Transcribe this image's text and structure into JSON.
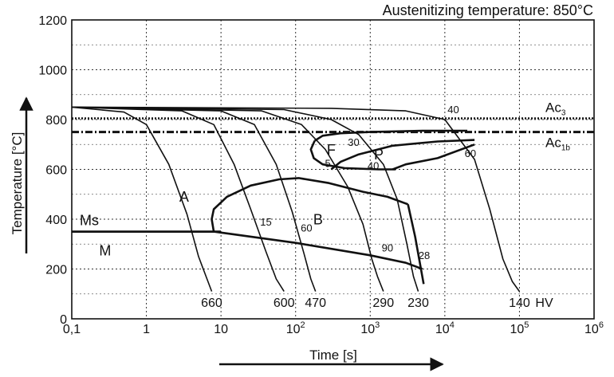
{
  "chart_data": {
    "type": "line",
    "title": "Austenitizing temperature: 850°C",
    "xlabel": "Time [s]",
    "ylabel": "Temperature [°C]",
    "x_scale": "log",
    "xlim": [
      0.1,
      1000000
    ],
    "ylim": [
      0,
      1200
    ],
    "grid": true,
    "x_ticks": [
      {
        "v": 0.1,
        "base": "0,1",
        "exp": ""
      },
      {
        "v": 1,
        "base": "1",
        "exp": ""
      },
      {
        "v": 10,
        "base": "10",
        "exp": ""
      },
      {
        "v": 100,
        "base": "10",
        "exp": "2"
      },
      {
        "v": 1000,
        "base": "10",
        "exp": "3"
      },
      {
        "v": 10000,
        "base": "10",
        "exp": "4"
      },
      {
        "v": 100000,
        "base": "10",
        "exp": "5"
      },
      {
        "v": 1000000,
        "base": "10",
        "exp": "6"
      }
    ],
    "y_ticks": [
      0,
      200,
      400,
      600,
      800,
      1000,
      1200
    ],
    "reference_lines": [
      {
        "base": "Ac",
        "sub": "3",
        "y": 805,
        "style": "dotted"
      },
      {
        "base": "Ac",
        "sub": "1b",
        "y": 750,
        "style": "dashdot"
      }
    ],
    "ms_line": {
      "label": "Ms",
      "points": [
        [
          0.1,
          350
        ],
        [
          10,
          350
        ]
      ]
    },
    "regions": [
      {
        "label": "A",
        "x": 3.2,
        "y": 470
      },
      {
        "label": "B",
        "x": 200,
        "y": 380
      },
      {
        "label": "F",
        "x": 300,
        "y": 660
      },
      {
        "label": "P",
        "x": 1300,
        "y": 640
      },
      {
        "label": "M",
        "x": 0.28,
        "y": 255
      }
    ],
    "cooling_curves": [
      {
        "hardness": "660",
        "points": [
          [
            0.1,
            850
          ],
          [
            0.5,
            830
          ],
          [
            1,
            780
          ],
          [
            2,
            620
          ],
          [
            3.5,
            420
          ],
          [
            5,
            250
          ],
          [
            6.5,
            160
          ],
          [
            7.5,
            110
          ]
        ]
      },
      {
        "hardness": "600",
        "points": [
          [
            0.1,
            850
          ],
          [
            3,
            835
          ],
          [
            8,
            780
          ],
          [
            15,
            620
          ],
          [
            25,
            440
          ],
          [
            40,
            270
          ],
          [
            55,
            160
          ],
          [
            70,
            110
          ]
        ]
      },
      {
        "hardness": "470",
        "points": [
          [
            0.1,
            850
          ],
          [
            10,
            835
          ],
          [
            28,
            780
          ],
          [
            55,
            620
          ],
          [
            90,
            430
          ],
          [
            130,
            260
          ],
          [
            160,
            160
          ],
          [
            185,
            110
          ]
        ]
      },
      {
        "hardness": "290",
        "points": [
          [
            0.1,
            850
          ],
          [
            35,
            835
          ],
          [
            120,
            780
          ],
          [
            250,
            680
          ],
          [
            500,
            530
          ],
          [
            800,
            380
          ],
          [
            1050,
            240
          ],
          [
            1250,
            170
          ],
          [
            1500,
            110
          ]
        ]
      },
      {
        "hardness": "230",
        "points": [
          [
            0.1,
            850
          ],
          [
            70,
            840
          ],
          [
            300,
            800
          ],
          [
            700,
            740
          ],
          [
            1500,
            620
          ],
          [
            2300,
            480
          ],
          [
            3100,
            300
          ],
          [
            3800,
            170
          ],
          [
            4400,
            110
          ]
        ]
      },
      {
        "hardness": "140",
        "points": [
          [
            0.1,
            850
          ],
          [
            300,
            845
          ],
          [
            3000,
            835
          ],
          [
            10000,
            800
          ],
          [
            25000,
            640
          ],
          [
            40000,
            440
          ],
          [
            60000,
            240
          ],
          [
            80000,
            150
          ],
          [
            100000,
            110
          ]
        ]
      }
    ],
    "transformation_lines": [
      {
        "region": "bainite-start",
        "points": [
          [
            8,
            350
          ],
          [
            7.5,
            400
          ],
          [
            8,
            440
          ],
          [
            12,
            490
          ],
          [
            25,
            535
          ],
          [
            60,
            560
          ],
          [
            110,
            565
          ],
          [
            280,
            545
          ],
          [
            800,
            510
          ],
          [
            1700,
            490
          ],
          [
            3200,
            460
          ]
        ]
      },
      {
        "region": "bainite-finish",
        "points": [
          [
            3200,
            460
          ],
          [
            4000,
            330
          ],
          [
            5200,
            140
          ]
        ]
      },
      {
        "region": "martensite-finish",
        "points": [
          [
            8,
            350
          ],
          [
            100,
            305
          ],
          [
            1000,
            255
          ],
          [
            3000,
            225
          ],
          [
            5000,
            200
          ]
        ]
      },
      {
        "region": "ferrite-start",
        "points": [
          [
            180,
            715
          ],
          [
            230,
            735
          ],
          [
            400,
            745
          ],
          [
            1000,
            750
          ],
          [
            5000,
            755
          ],
          [
            20000,
            755
          ]
        ]
      },
      {
        "region": "ferrite-lower",
        "points": [
          [
            180,
            715
          ],
          [
            160,
            680
          ],
          [
            175,
            645
          ],
          [
            230,
            620
          ],
          [
            450,
            605
          ],
          [
            1300,
            600
          ],
          [
            2200,
            600
          ]
        ]
      },
      {
        "region": "pearlite-start",
        "points": [
          [
            300,
            600
          ],
          [
            400,
            630
          ],
          [
            700,
            660
          ],
          [
            2000,
            695
          ],
          [
            8000,
            712
          ],
          [
            25000,
            718
          ]
        ]
      },
      {
        "region": "pearlite-finish",
        "points": [
          [
            2000,
            600
          ],
          [
            3000,
            620
          ],
          [
            8000,
            645
          ],
          [
            25000,
            700
          ]
        ]
      }
    ],
    "annotations": [
      {
        "text": "40",
        "x": 13000,
        "y": 825
      },
      {
        "text": "30",
        "x": 600,
        "y": 695
      },
      {
        "text": "5",
        "x": 270,
        "y": 610
      },
      {
        "text": "40",
        "x": 1100,
        "y": 600
      },
      {
        "text": "60",
        "x": 22000,
        "y": 650
      },
      {
        "text": "15",
        "x": 40,
        "y": 375
      },
      {
        "text": "60",
        "x": 140,
        "y": 350
      },
      {
        "text": "90",
        "x": 1700,
        "y": 270
      },
      {
        "text": "28",
        "x": 5300,
        "y": 240
      }
    ],
    "hv_label": "HV"
  }
}
